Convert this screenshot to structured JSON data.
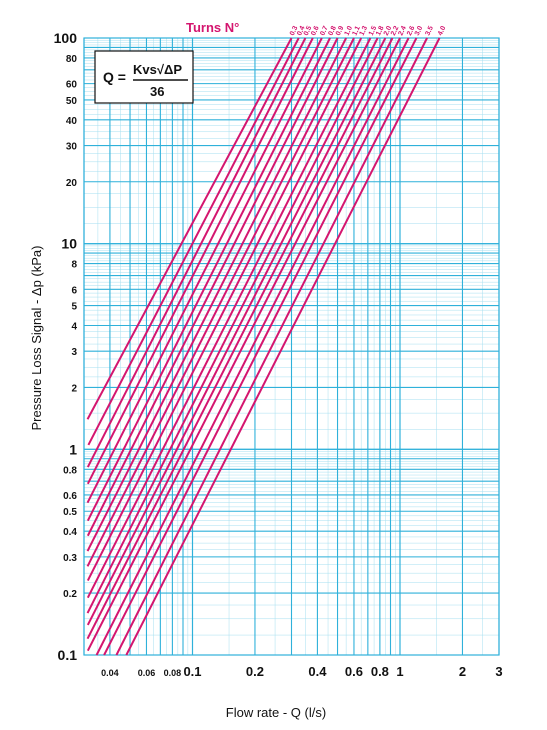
{
  "chart_data": {
    "type": "line",
    "title": "",
    "xlabel": "Flow rate - Q (l/s)",
    "ylabel": "Pressure Loss Signal  - Δp (kPa)",
    "x_scale": "log",
    "y_scale": "log",
    "xlim": [
      0.03,
      3
    ],
    "ylim": [
      0.1,
      100
    ],
    "grid": true,
    "x_ticks": [
      0.04,
      0.06,
      0.08,
      0.1,
      0.2,
      0.4,
      0.6,
      0.8,
      1,
      2,
      3
    ],
    "x_tick_labels": [
      "0.04",
      "0.06",
      "0.08",
      "0.1",
      "0.2",
      "0.4",
      "0.6",
      "0.8",
      "1",
      "2",
      "3"
    ],
    "y_ticks": [
      0.1,
      0.2,
      0.3,
      0.4,
      0.5,
      0.6,
      0.8,
      1,
      2,
      3,
      4,
      5,
      6,
      8,
      10,
      20,
      30,
      40,
      50,
      60,
      80,
      100
    ],
    "y_tick_labels": [
      "0.1",
      "0.2",
      "0.3",
      "0.4",
      "0.5",
      "0.6",
      "0.8",
      "1",
      "2",
      "3",
      "4",
      "5",
      "6",
      "8",
      "10",
      "20",
      "30",
      "40",
      "50",
      "60",
      "80",
      "100"
    ],
    "legend_title": "Turns N°",
    "formula": {
      "lhs": "Q =",
      "numerator": "Kvs√ΔP",
      "denominator": "36"
    },
    "series_rule": "Q = Kvs·√Δp / 36",
    "series": [
      {
        "name": "0.3",
        "points": [
          [
            0.0312,
            1.4
          ],
          [
            0.3,
            100
          ]
        ]
      },
      {
        "name": "0.4",
        "points": [
          [
            0.0315,
            1.05
          ],
          [
            0.325,
            100
          ]
        ]
      },
      {
        "name": "0.5",
        "points": [
          [
            0.0313,
            0.82
          ],
          [
            0.35,
            100
          ]
        ]
      },
      {
        "name": "0.6",
        "points": [
          [
            0.0313,
            0.68
          ],
          [
            0.38,
            100
          ]
        ]
      },
      {
        "name": "0.7",
        "points": [
          [
            0.0312,
            0.55
          ],
          [
            0.42,
            100
          ]
        ]
      },
      {
        "name": "0.8",
        "points": [
          [
            0.0313,
            0.45
          ],
          [
            0.46,
            100
          ]
        ]
      },
      {
        "name": "0.9",
        "points": [
          [
            0.0313,
            0.38
          ],
          [
            0.5,
            100
          ]
        ]
      },
      {
        "name": "1.0",
        "points": [
          [
            0.0312,
            0.32
          ],
          [
            0.55,
            100
          ]
        ]
      },
      {
        "name": "1.1",
        "points": [
          [
            0.0312,
            0.27
          ],
          [
            0.6,
            100
          ]
        ]
      },
      {
        "name": "1.3",
        "points": [
          [
            0.0313,
            0.23
          ],
          [
            0.65,
            100
          ]
        ]
      },
      {
        "name": "1.5",
        "points": [
          [
            0.0313,
            0.19
          ],
          [
            0.72,
            100
          ]
        ]
      },
      {
        "name": "1.8",
        "points": [
          [
            0.0312,
            0.16
          ],
          [
            0.78,
            100
          ]
        ]
      },
      {
        "name": "2.0",
        "points": [
          [
            0.0313,
            0.14
          ],
          [
            0.85,
            100
          ]
        ]
      },
      {
        "name": "2.2",
        "points": [
          [
            0.0312,
            0.12
          ],
          [
            0.92,
            100
          ]
        ]
      },
      {
        "name": "2.4",
        "points": [
          [
            0.0313,
            0.105
          ],
          [
            1.0,
            100
          ]
        ]
      },
      {
        "name": "2.6",
        "points": [
          [
            0.0345,
            0.1
          ],
          [
            1.1,
            100
          ]
        ]
      },
      {
        "name": "3.0",
        "points": [
          [
            0.0375,
            0.1
          ],
          [
            1.2,
            100
          ]
        ]
      },
      {
        "name": "3.5",
        "points": [
          [
            0.043,
            0.1
          ],
          [
            1.35,
            100
          ]
        ]
      },
      {
        "name": "4.0",
        "points": [
          [
            0.048,
            0.1
          ],
          [
            1.55,
            100
          ]
        ]
      }
    ]
  }
}
